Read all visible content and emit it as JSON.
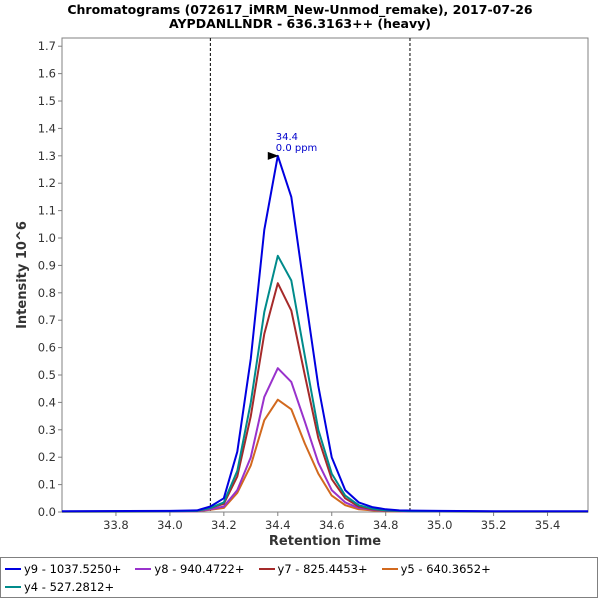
{
  "chart_data": {
    "type": "line",
    "title": [
      "Chromatograms (072617_iMRM_New-Unmod_remake), 2017-07-26",
      "AYPDANLLNDR - 636.3163++ (heavy)"
    ],
    "xlabel": "Retention Time",
    "ylabel": "Intensity 10^6",
    "xlim": [
      33.6,
      35.55
    ],
    "ylim": [
      0.0,
      1.73
    ],
    "xticks": [
      "33.8",
      "34.0",
      "34.2",
      "34.4",
      "34.6",
      "34.8",
      "35.0",
      "35.2",
      "35.4"
    ],
    "yticks": [
      "0.0",
      "0.1",
      "0.2",
      "0.3",
      "0.4",
      "0.5",
      "0.6",
      "0.7",
      "0.8",
      "0.9",
      "1.0",
      "1.1",
      "1.2",
      "1.3",
      "1.4",
      "1.5",
      "1.6",
      "1.7"
    ],
    "vlines": [
      34.15,
      34.89
    ],
    "annotation": {
      "x": 34.4,
      "y": 1.3,
      "lines": [
        "34.4",
        "0.0 ppm"
      ]
    },
    "x": [
      33.6,
      34.0,
      34.1,
      34.15,
      34.2,
      34.25,
      34.3,
      34.35,
      34.4,
      34.45,
      34.5,
      34.55,
      34.6,
      34.65,
      34.7,
      34.75,
      34.8,
      34.85,
      34.9,
      35.0,
      35.2,
      35.55
    ],
    "series": [
      {
        "name": "y9 - 1037.5250+",
        "color": "#0000e0",
        "values": [
          0.003,
          0.004,
          0.006,
          0.02,
          0.05,
          0.22,
          0.56,
          1.03,
          1.3,
          1.15,
          0.8,
          0.46,
          0.2,
          0.08,
          0.035,
          0.018,
          0.01,
          0.006,
          0.005,
          0.004,
          0.003,
          0.003
        ]
      },
      {
        "name": "y8 - 940.4722+",
        "color": "#9932cc",
        "values": [
          0.002,
          0.002,
          0.003,
          0.01,
          0.02,
          0.08,
          0.2,
          0.42,
          0.525,
          0.475,
          0.33,
          0.18,
          0.08,
          0.035,
          0.015,
          0.008,
          0.004,
          0.003,
          0.002,
          0.002,
          0.002,
          0.002
        ]
      },
      {
        "name": "y7 - 825.4453+",
        "color": "#a52a2a",
        "values": [
          0.002,
          0.003,
          0.004,
          0.015,
          0.03,
          0.13,
          0.35,
          0.65,
          0.835,
          0.735,
          0.5,
          0.27,
          0.12,
          0.05,
          0.02,
          0.01,
          0.005,
          0.004,
          0.003,
          0.003,
          0.002,
          0.002
        ]
      },
      {
        "name": "y5 - 640.3652+",
        "color": "#d2691e",
        "values": [
          0.001,
          0.002,
          0.003,
          0.008,
          0.015,
          0.07,
          0.17,
          0.335,
          0.41,
          0.375,
          0.25,
          0.14,
          0.06,
          0.025,
          0.01,
          0.006,
          0.003,
          0.002,
          0.002,
          0.002,
          0.001,
          0.001
        ]
      },
      {
        "name": "y4 - 527.2812+",
        "color": "#008b8b",
        "values": [
          0.002,
          0.003,
          0.004,
          0.015,
          0.035,
          0.15,
          0.4,
          0.73,
          0.935,
          0.845,
          0.57,
          0.3,
          0.14,
          0.06,
          0.025,
          0.012,
          0.006,
          0.004,
          0.003,
          0.003,
          0.002,
          0.002
        ]
      }
    ]
  },
  "legend": {
    "rows": [
      [
        {
          "label": "y9 - 1037.5250+",
          "color": "#0000e0"
        },
        {
          "label": "y8 - 940.4722+",
          "color": "#9932cc"
        },
        {
          "label": "y7 - 825.4453+",
          "color": "#a52a2a"
        },
        {
          "label": "y5 - 640.3652+",
          "color": "#d2691e"
        }
      ],
      [
        {
          "label": "y4 - 527.2812+",
          "color": "#008b8b"
        }
      ]
    ]
  }
}
